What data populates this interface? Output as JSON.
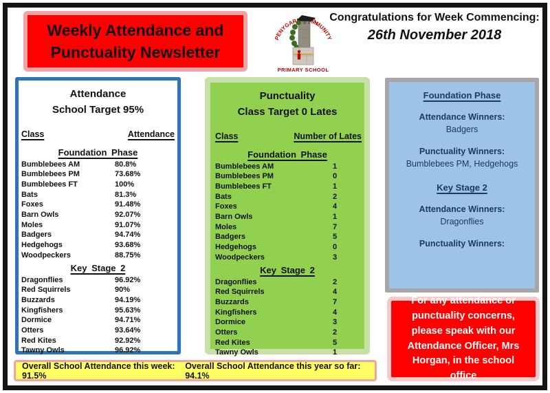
{
  "header": {
    "title_line1": "Weekly Attendance and",
    "title_line2": "Punctuality Newsletter",
    "congrats_label": "Congratulations for Week Commencing:",
    "congrats_date": "26th November 2018"
  },
  "logo": {
    "arc_text": "PENYGARN COMMUNITY",
    "bottom_text": "PRIMARY SCHOOL"
  },
  "attendance_panel": {
    "title": "Attendance",
    "subtitle": "School Target 95%",
    "col_class": "Class",
    "col_value": "Attendance",
    "foundation_header": "Foundation Phase",
    "foundation_rows": [
      [
        "Bumblebees AM",
        "80.8%"
      ],
      [
        "Bumblebees PM",
        "73.68%"
      ],
      [
        "Bumblebees FT",
        "100%"
      ],
      [
        "Bats",
        "81.3%"
      ],
      [
        "Foxes",
        "91.48%"
      ],
      [
        "Barn Owls",
        "92.07%"
      ],
      [
        "Moles",
        "91.07%"
      ],
      [
        "Badgers",
        "94.74%"
      ],
      [
        "Hedgehogs",
        "93.68%"
      ],
      [
        "Woodpeckers",
        "88.75%"
      ]
    ],
    "ks2_header": "Key Stage 2",
    "ks2_rows": [
      [
        "Dragonflies",
        "96.92%"
      ],
      [
        "Red Squirrels",
        "90%"
      ],
      [
        "Buzzards",
        "94.19%"
      ],
      [
        "Kingfishers",
        "95.63%"
      ],
      [
        "Dormice",
        "94.71%"
      ],
      [
        "Otters",
        "93.64%"
      ],
      [
        "Red Kites",
        "92.92%"
      ],
      [
        "Tawny Owls",
        "96.92%"
      ]
    ]
  },
  "punctuality_panel": {
    "title": "Punctuality",
    "subtitle": "Class Target 0 Lates",
    "col_class": "Class",
    "col_value": "Number of Lates",
    "foundation_header": "Foundation Phase",
    "foundation_rows": [
      [
        "Bumblebees AM",
        "1"
      ],
      [
        "Bumblebees PM",
        "0"
      ],
      [
        "Bumblebees FT",
        "1"
      ],
      [
        "Bats",
        "2"
      ],
      [
        "Foxes",
        "4"
      ],
      [
        "Barn Owls",
        "1"
      ],
      [
        "Moles",
        "7"
      ],
      [
        "Badgers",
        "5"
      ],
      [
        "Hedgehogs",
        "0"
      ],
      [
        "Woodpeckers",
        "3"
      ]
    ],
    "ks2_header": "Key Stage 2",
    "ks2_rows": [
      [
        "Dragonflies",
        "2"
      ],
      [
        "Red Squirrels",
        "4"
      ],
      [
        "Buzzards",
        "7"
      ],
      [
        "Kingfishers",
        "4"
      ],
      [
        "Dormice",
        "3"
      ],
      [
        "Otters",
        "2"
      ],
      [
        "Red Kites",
        "5"
      ],
      [
        "Tawny Owls",
        "1"
      ]
    ]
  },
  "winners_panel": {
    "foundation": {
      "header": "Foundation Phase",
      "attendance_label": "Attendance Winners:",
      "attendance_winner": "Badgers",
      "punctuality_label": "Punctuality Winners:",
      "punctuality_winner": "Bumblebees PM, Hedgehogs"
    },
    "key_stage_2": {
      "header": "Key Stage 2",
      "attendance_label": "Attendance Winners:",
      "attendance_winner": "Dragonflies",
      "punctuality_label": "Punctuality Winners:",
      "punctuality_winner": ""
    }
  },
  "notice": {
    "text": "For any attendance or punctuality concerns, please speak with our Attendance Officer, Mrs Horgan, in the school office"
  },
  "footer": {
    "week_text": "Overall School Attendance this week: 91.5%",
    "year_text": "Overall School Attendance this year so far: 94.1%"
  },
  "colors": {
    "banner_red": "#FE0000",
    "banner_border_pink": "#F2A2A2",
    "attendance_panel_border": "#2E75B6",
    "punctuality_fill": "#92D050",
    "punctuality_border": "#C6E0A5",
    "winners_fill": "#9DC3E6",
    "winners_border": "#A6A6A6",
    "notice_red": "#FE0000",
    "notice_border_pink": "#F8C9C9",
    "footer_yellow": "#FFFF64",
    "winners_text_navy": "#1F3864",
    "logo_red": "#C00000"
  }
}
